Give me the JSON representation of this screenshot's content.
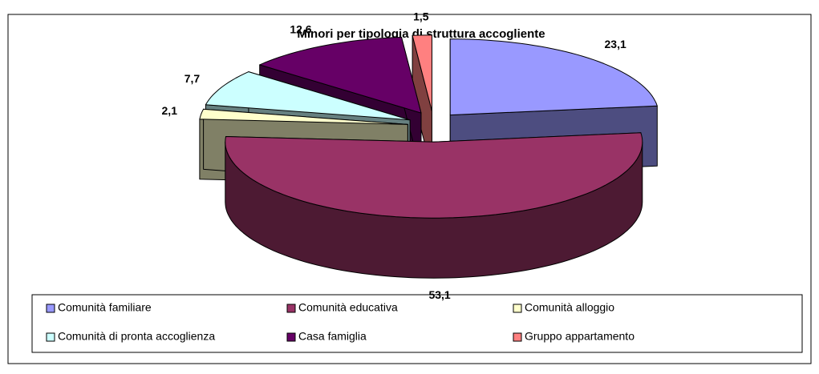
{
  "chart_data": {
    "type": "pie3d",
    "title": "Minori per tipologia di struttura accogliente",
    "categories": [
      "Comunità familiare",
      "Comunità educativa",
      "Comunità alloggio",
      "Comunità di pronta accoglienza",
      "Casa famiglia",
      "Gruppo appartamento"
    ],
    "values": [
      23.1,
      53.1,
      2.1,
      7.7,
      12.6,
      1.5
    ],
    "value_labels": [
      "23,1",
      "53,1",
      "2,1",
      "7,7",
      "12,6",
      "1,5"
    ],
    "colors": [
      "#9999ff",
      "#993366",
      "#ffffcc",
      "#ccffff",
      "#660066",
      "#ff8080"
    ],
    "legend": "bottom"
  }
}
